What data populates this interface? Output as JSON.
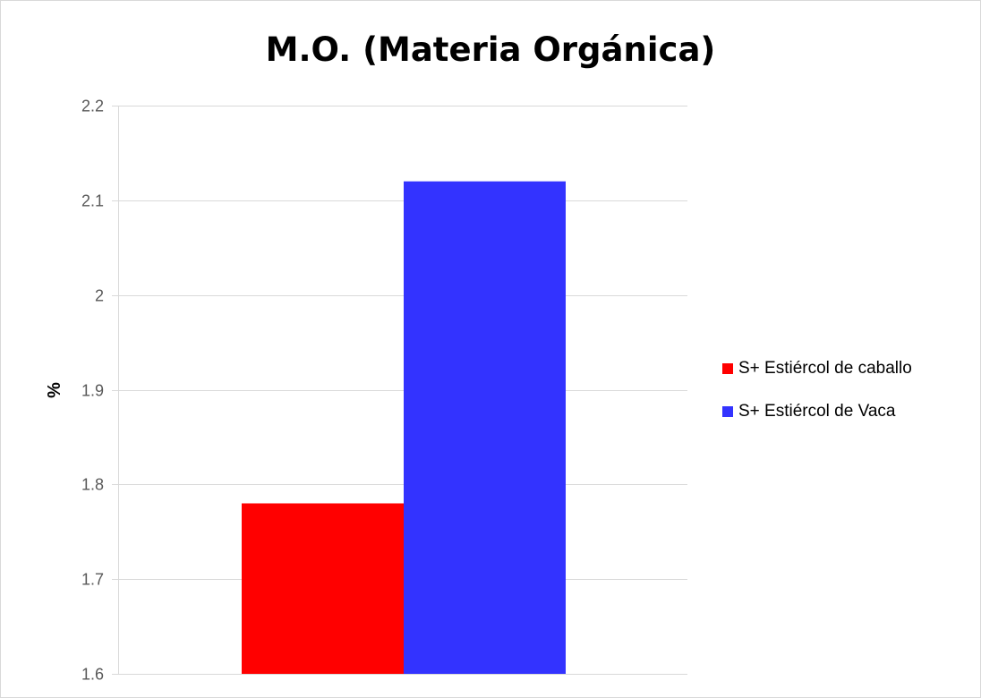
{
  "chart_data": {
    "type": "bar",
    "title": "M.O. (Materia Orgánica)",
    "xlabel": "",
    "ylabel": "%",
    "ylim": [
      1.6,
      2.2
    ],
    "yticks": [
      "1.6",
      "1.7",
      "1.8",
      "1.9",
      "2",
      "2.1",
      "2.2"
    ],
    "ytick_values": [
      1.6,
      1.7,
      1.8,
      1.9,
      2.0,
      2.1,
      2.2
    ],
    "categories": [
      ""
    ],
    "grid": true,
    "legend_position": "right",
    "series": [
      {
        "name": "S+ Estiércol de caballo",
        "values": [
          1.78
        ],
        "color": "#FF0000"
      },
      {
        "name": "S+ Estiércol de Vaca",
        "values": [
          2.12
        ],
        "color": "#3333FF"
      }
    ]
  }
}
